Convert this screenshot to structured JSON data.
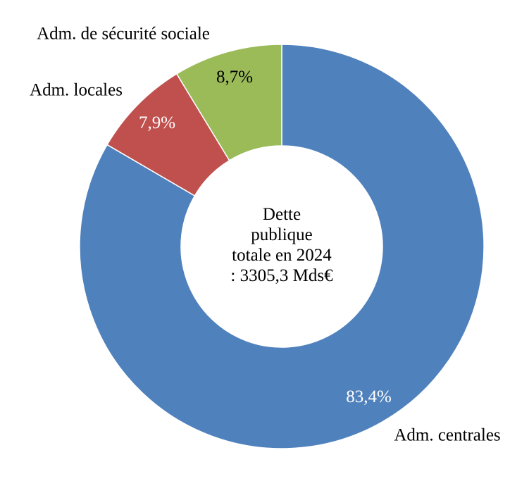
{
  "chart_data": {
    "type": "donut",
    "center_text": [
      "Dette",
      "publique",
      "totale en 2024",
      ": 3305,3 Mds€"
    ],
    "categories": [
      "Adm. centrales",
      "Adm. locales",
      "Adm. de sécurité sociale"
    ],
    "values": [
      83.4,
      7.9,
      8.7
    ],
    "value_labels": [
      "83,4%",
      "7,9%",
      "8,7%"
    ],
    "colors": [
      "#4f81bd",
      "#c0504d",
      "#9bbb59"
    ],
    "value_label_colors": [
      "#ffffff",
      "#ffffff",
      "#000000"
    ]
  }
}
